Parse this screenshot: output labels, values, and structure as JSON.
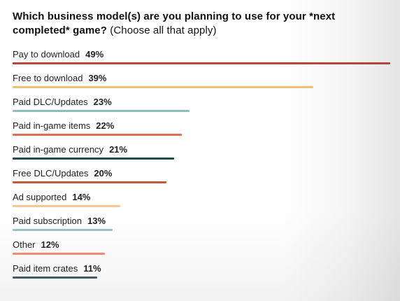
{
  "title": {
    "question": "Which business model(s) are you planning to use for your *next completed* game?",
    "hint": "(Choose all that apply)"
  },
  "chart_data": {
    "type": "bar",
    "orientation": "horizontal",
    "title": "Which business model(s) are you planning to use for your *next completed* game? (Choose all that apply)",
    "categories": [
      "Pay to download",
      "Free to download",
      "Paid DLC/Updates",
      "Paid in-game items",
      "Paid in-game currency",
      "Free DLC/Updates",
      "Ad supported",
      "Paid subscription",
      "Other",
      "Paid item crates"
    ],
    "values": [
      49,
      39,
      23,
      22,
      21,
      20,
      14,
      13,
      12,
      11
    ],
    "value_labels": [
      "49%",
      "39%",
      "23%",
      "22%",
      "21%",
      "20%",
      "14%",
      "13%",
      "12%",
      "11%"
    ],
    "unit": "%",
    "colors": [
      "#b5473a",
      "#f0c07a",
      "#8fbfb8",
      "#db6f55",
      "#1f4d4a",
      "#c3593f",
      "#f6c892",
      "#99c3bf",
      "#f08a72",
      "#3f5f63"
    ],
    "xlim": [
      0,
      49
    ],
    "grid": false,
    "legend": "none"
  }
}
